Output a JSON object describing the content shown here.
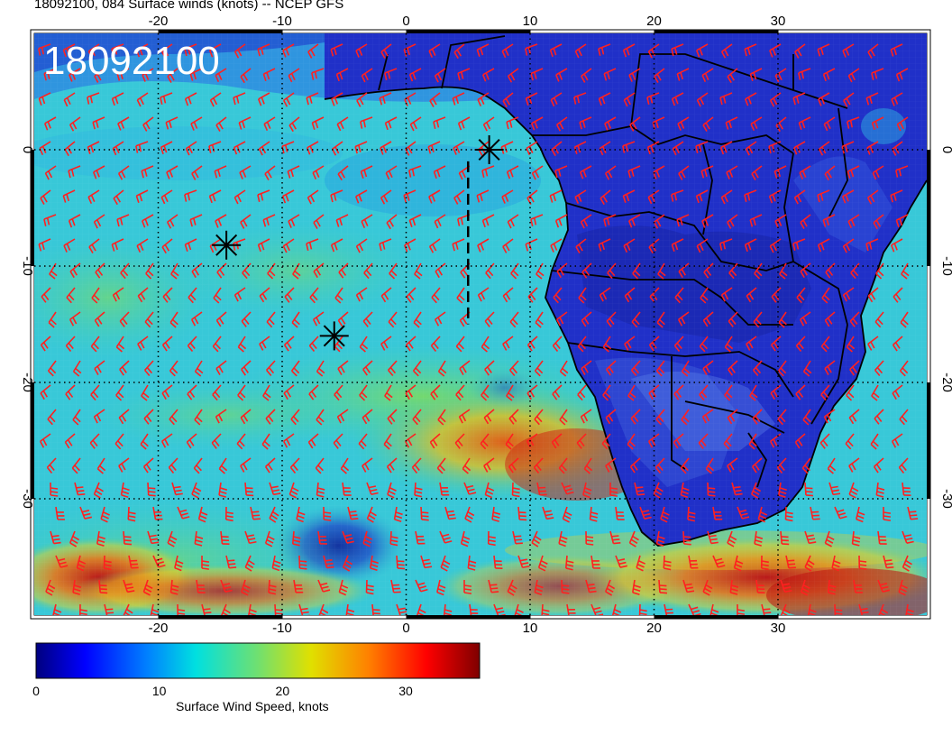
{
  "header": {
    "title": "18092100, 084 Surface winds (knots) -- NCEP GFS"
  },
  "map": {
    "stamp": "18092100",
    "lon_ticks": [
      "-20",
      "-10",
      "0",
      "10",
      "20",
      "30"
    ],
    "lat_ticks": [
      "0",
      "-10",
      "-20",
      "-30"
    ],
    "lon_range": [
      -30,
      42
    ],
    "lat_range": [
      -40,
      10
    ],
    "barb_color": "#ff2020",
    "storm_markers": [
      {
        "lon": 6.7,
        "lat": 0.0
      },
      {
        "lon": -14.5,
        "lat": -8.2
      },
      {
        "lon": -5.8,
        "lat": -16.0
      }
    ],
    "track_segment": {
      "lon": 5.0,
      "lat_start": -1.0,
      "lat_end": -15.0
    }
  },
  "colorbar": {
    "label": "Surface Wind Speed, knots",
    "ticks": [
      "0",
      "10",
      "20",
      "30"
    ],
    "range": [
      0,
      36
    ]
  }
}
